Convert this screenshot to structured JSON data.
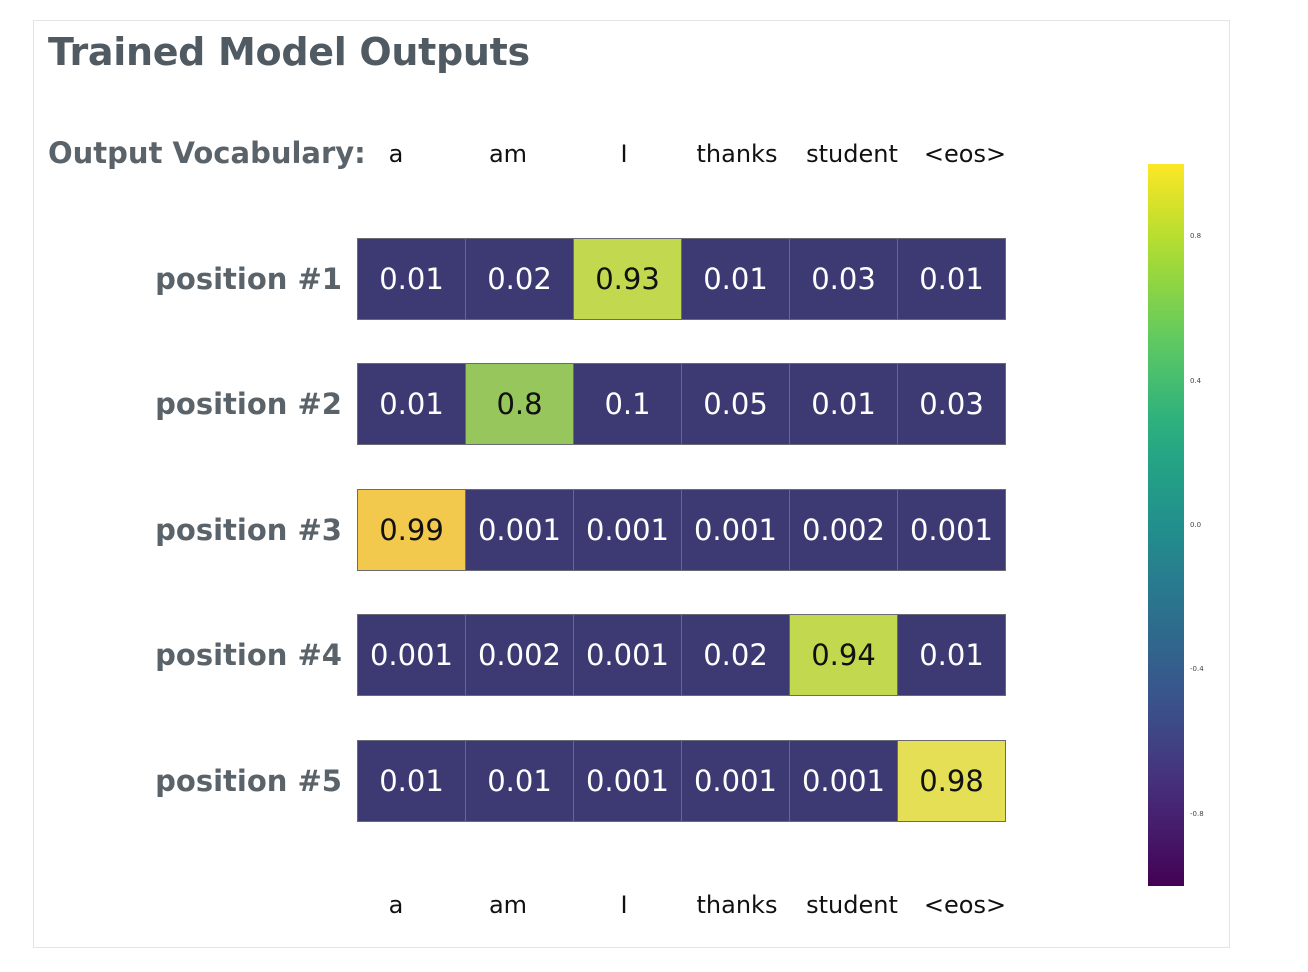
{
  "chart_data": {
    "type": "heatmap",
    "title": "Trained Model Outputs",
    "column_header_label": "Output Vocabulary:",
    "columns": [
      "a",
      "am",
      "I",
      "thanks",
      "student",
      "<eos>"
    ],
    "rows": [
      "position #1",
      "position #2",
      "position #3",
      "position #4",
      "position #5"
    ],
    "values": [
      [
        "0.01",
        "0.02",
        "0.93",
        "0.01",
        "0.03",
        "0.01"
      ],
      [
        "0.01",
        "0.8",
        "0.1",
        "0.05",
        "0.01",
        "0.03"
      ],
      [
        "0.99",
        "0.001",
        "0.001",
        "0.001",
        "0.002",
        "0.001"
      ],
      [
        "0.001",
        "0.002",
        "0.001",
        "0.02",
        "0.94",
        "0.01"
      ],
      [
        "0.01",
        "0.01",
        "0.001",
        "0.001",
        "0.001",
        "0.98"
      ]
    ],
    "colorscale": "viridis",
    "colorbar": {
      "ticks": [
        "0.8",
        "0.4",
        "0.0",
        "-0.4",
        "-0.8"
      ],
      "range": [
        -1,
        1
      ]
    },
    "colors": {
      "low": "#3d3a73",
      "mid_green": "#97c65c",
      "yellow_green": "#c2d84e",
      "bright_yellow": "#e4df55",
      "gold": "#f2c84d"
    }
  }
}
